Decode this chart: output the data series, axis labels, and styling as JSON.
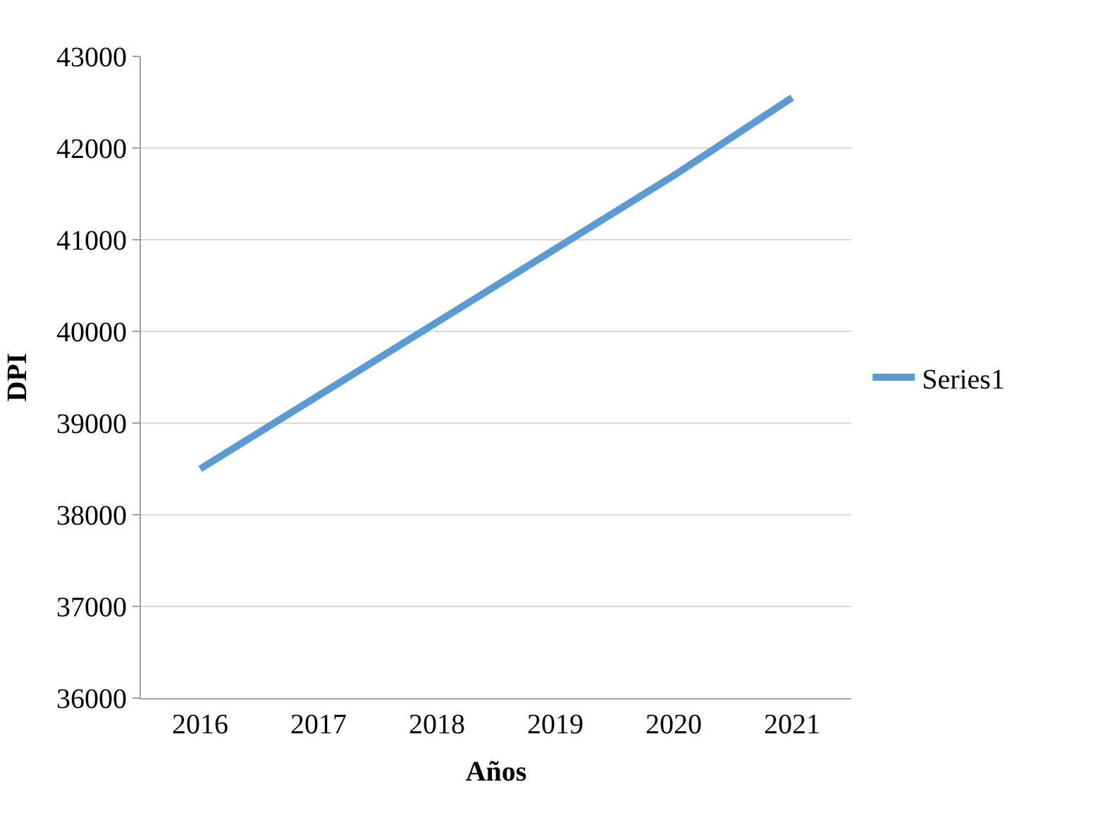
{
  "chart_data": {
    "type": "line",
    "xlabel": "Años",
    "ylabel": "DPI",
    "categories": [
      "2016",
      "2017",
      "2018",
      "2019",
      "2020",
      "2021"
    ],
    "series": [
      {
        "name": "Series1",
        "color": "#5b9bd5",
        "values": [
          38500,
          39300,
          40100,
          40900,
          41700,
          42550
        ]
      }
    ],
    "ylim": [
      36000,
      43000
    ],
    "yticks": [
      36000,
      37000,
      38000,
      39000,
      40000,
      41000,
      42000,
      43000
    ],
    "grid": "y",
    "legend": "right",
    "marker": "none",
    "line_style": "solid"
  }
}
